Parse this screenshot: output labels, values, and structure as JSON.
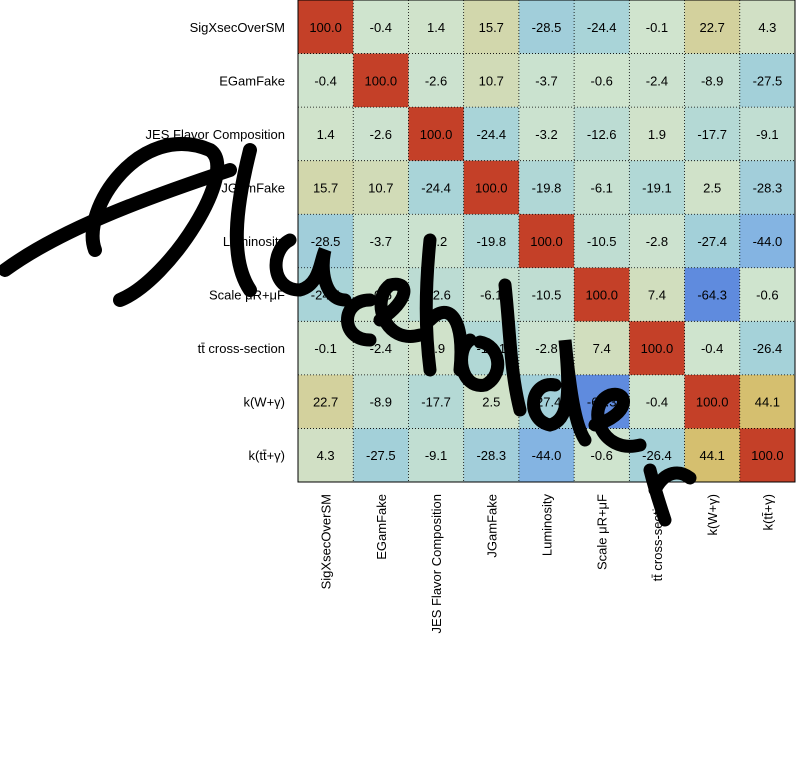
{
  "chart_data": {
    "type": "heatmap",
    "labels": [
      "SigXsecOverSM",
      "EGamFake",
      "JES Flavor Composition",
      "JGamFake",
      "Luminosity",
      "Scale μR+μF",
      "tt̄ cross-section",
      "k(W+γ)",
      "k(tt̄+γ)"
    ],
    "matrix": [
      [
        100.0,
        -0.4,
        1.4,
        15.7,
        -28.5,
        -24.4,
        -0.1,
        22.7,
        4.3
      ],
      [
        -0.4,
        100.0,
        -2.6,
        10.7,
        -3.7,
        -0.6,
        -2.4,
        -8.9,
        -27.5
      ],
      [
        1.4,
        -2.6,
        100.0,
        -24.4,
        -3.2,
        -12.6,
        1.9,
        -17.7,
        -9.1
      ],
      [
        15.7,
        10.7,
        -24.4,
        100.0,
        -19.8,
        -6.1,
        -19.1,
        2.5,
        -28.3
      ],
      [
        -28.5,
        -3.7,
        -3.2,
        -19.8,
        100.0,
        -10.5,
        -2.8,
        -27.4,
        -44.0
      ],
      [
        -24.4,
        -0.6,
        -12.6,
        -6.1,
        -10.5,
        100.0,
        7.4,
        -64.3,
        -0.6
      ],
      [
        -0.1,
        -2.4,
        1.9,
        -19.1,
        -2.8,
        7.4,
        100.0,
        -0.4,
        -26.4
      ],
      [
        22.7,
        -8.9,
        -17.7,
        2.5,
        -27.4,
        -64.3,
        -0.4,
        100.0,
        44.1
      ],
      [
        4.3,
        -27.5,
        -9.1,
        -28.3,
        -44.0,
        -0.6,
        -26.4,
        44.1,
        100.0
      ]
    ],
    "zlim": [
      -100,
      100
    ],
    "grid": true,
    "overlay_text": "Placeholder"
  }
}
